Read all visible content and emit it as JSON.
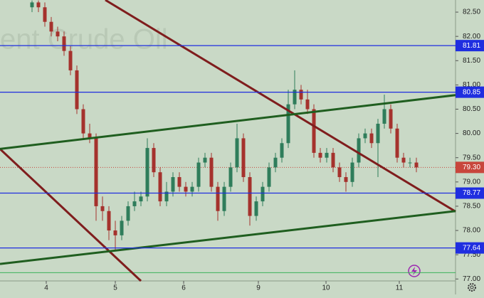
{
  "chart_data": {
    "type": "candlestick",
    "watermark": "ent Crude Oil",
    "x": [
      0,
      1,
      2,
      3,
      4,
      5,
      6,
      7,
      8,
      9,
      10,
      11,
      12,
      13,
      14,
      15,
      16,
      17,
      18,
      19,
      20,
      21,
      22,
      23,
      24,
      25,
      26,
      27,
      28,
      29,
      30,
      31,
      32,
      33,
      34,
      35,
      36,
      37,
      38,
      39,
      40,
      41,
      42,
      43,
      44,
      45,
      46,
      47,
      48,
      49,
      50,
      51,
      52,
      53,
      54,
      55,
      56,
      57,
      58,
      59,
      60
    ],
    "open": [
      82.6,
      82.7,
      82.6,
      82.3,
      82.1,
      82.0,
      81.7,
      81.3,
      80.5,
      80.0,
      79.9,
      78.5,
      78.4,
      78.0,
      77.9,
      78.2,
      78.5,
      78.6,
      78.7,
      79.7,
      79.2,
      78.6,
      78.8,
      79.1,
      78.9,
      78.8,
      78.9,
      79.4,
      79.5,
      78.9,
      78.4,
      78.9,
      79.3,
      79.9,
      79.1,
      78.3,
      78.6,
      78.9,
      79.3,
      79.5,
      79.8,
      80.6,
      80.9,
      80.7,
      80.5,
      79.6,
      79.5,
      79.6,
      79.3,
      79.1,
      79.0,
      79.4,
      79.9,
      80.0,
      79.8,
      80.2,
      80.5,
      80.1,
      79.5,
      79.4,
      79.4
    ],
    "high": [
      82.74,
      82.74,
      82.7,
      82.4,
      82.2,
      82.1,
      81.8,
      81.4,
      80.6,
      80.2,
      80.0,
      78.7,
      78.5,
      78.2,
      78.3,
      78.6,
      78.8,
      78.8,
      79.9,
      79.8,
      79.3,
      79.0,
      79.2,
      79.2,
      79.0,
      79.0,
      79.5,
      79.6,
      79.6,
      79.0,
      79.0,
      79.4,
      80.2,
      80.0,
      79.2,
      78.7,
      79.0,
      79.4,
      79.6,
      79.9,
      80.9,
      81.3,
      81.0,
      80.9,
      80.6,
      79.7,
      79.7,
      79.7,
      79.4,
      79.2,
      79.5,
      80.0,
      80.1,
      80.1,
      80.3,
      80.8,
      80.6,
      80.2,
      79.6,
      79.5,
      79.5
    ],
    "low": [
      82.5,
      82.5,
      82.2,
      82.0,
      81.9,
      81.6,
      81.2,
      80.4,
      79.9,
      79.8,
      78.2,
      78.2,
      77.8,
      77.6,
      77.8,
      78.1,
      78.4,
      78.5,
      78.6,
      79.1,
      78.5,
      78.5,
      78.7,
      78.8,
      78.7,
      78.7,
      78.8,
      79.3,
      78.8,
      78.2,
      78.3,
      78.8,
      79.2,
      79.0,
      78.1,
      78.2,
      78.5,
      78.8,
      79.2,
      79.4,
      79.7,
      80.5,
      80.6,
      80.4,
      79.5,
      79.4,
      79.4,
      79.2,
      79.0,
      78.8,
      78.9,
      79.3,
      79.8,
      79.7,
      79.1,
      80.1,
      80.0,
      79.4,
      79.3,
      79.3,
      79.2
    ],
    "close": [
      82.7,
      82.6,
      82.3,
      82.1,
      82.0,
      81.7,
      81.3,
      80.5,
      80.0,
      79.9,
      78.5,
      78.4,
      78.0,
      77.9,
      78.2,
      78.5,
      78.6,
      78.7,
      79.7,
      79.2,
      78.6,
      78.8,
      79.1,
      78.9,
      78.8,
      78.9,
      79.4,
      79.5,
      78.9,
      78.4,
      78.9,
      79.3,
      79.9,
      79.1,
      78.3,
      78.6,
      78.9,
      79.3,
      79.5,
      79.8,
      80.6,
      80.9,
      80.7,
      80.5,
      79.6,
      79.5,
      79.6,
      79.3,
      79.1,
      79.0,
      79.4,
      79.9,
      80.0,
      79.8,
      80.2,
      80.5,
      80.1,
      79.5,
      79.4,
      79.4,
      79.3
    ],
    "up_color": "#2f7d5b",
    "down_color": "#a5322d",
    "xlim": [
      -5,
      66.11
    ],
    "ylim": [
      76.96,
      82.75
    ],
    "xticks": [
      {
        "value": 2.22,
        "label": "4"
      },
      {
        "value": 13,
        "label": "5"
      },
      {
        "value": 23.67,
        "label": "6"
      },
      {
        "value": 35.33,
        "label": "9"
      },
      {
        "value": 45.89,
        "label": "10"
      },
      {
        "value": 57.33,
        "label": "11"
      }
    ],
    "yticks": [
      {
        "value": 77,
        "label": "77.00"
      },
      {
        "value": 77.5,
        "label": "77.50"
      },
      {
        "value": 78,
        "label": "78.00"
      },
      {
        "value": 78.5,
        "label": "78.50"
      },
      {
        "value": 79,
        "label": "79.00"
      },
      {
        "value": 79.5,
        "label": "79.50"
      },
      {
        "value": 80,
        "label": "80.00"
      },
      {
        "value": 80.5,
        "label": "80.50"
      },
      {
        "value": 81,
        "label": "81.00"
      },
      {
        "value": 81.5,
        "label": "81.50"
      },
      {
        "value": 82,
        "label": "82.00"
      },
      {
        "value": 82.5,
        "label": "82.50"
      }
    ],
    "levels": [
      81.81,
      80.85,
      78.77,
      77.64
    ],
    "level_color": "#1f2ee0",
    "last_price": {
      "value": 79.3,
      "label": "79.30"
    },
    "last_price_color": "#c8463c",
    "support_line": 77.13,
    "support_color": "#3bb35a",
    "trendlines": [
      {
        "color": "#7f1d1d",
        "x": [
          11.44,
          66.11
        ],
        "y": [
          82.75,
          78.39
        ]
      },
      {
        "color": "#7f1d1d",
        "x": [
          -5,
          17
        ],
        "y": [
          79.68,
          76.96
        ]
      },
      {
        "color": "#1f5e1f",
        "x": [
          -5,
          66.11
        ],
        "y": [
          79.68,
          80.79
        ]
      },
      {
        "color": "#1f5e1f",
        "x": [
          -5,
          66.11
        ],
        "y": [
          77.31,
          78.4
        ]
      }
    ]
  }
}
